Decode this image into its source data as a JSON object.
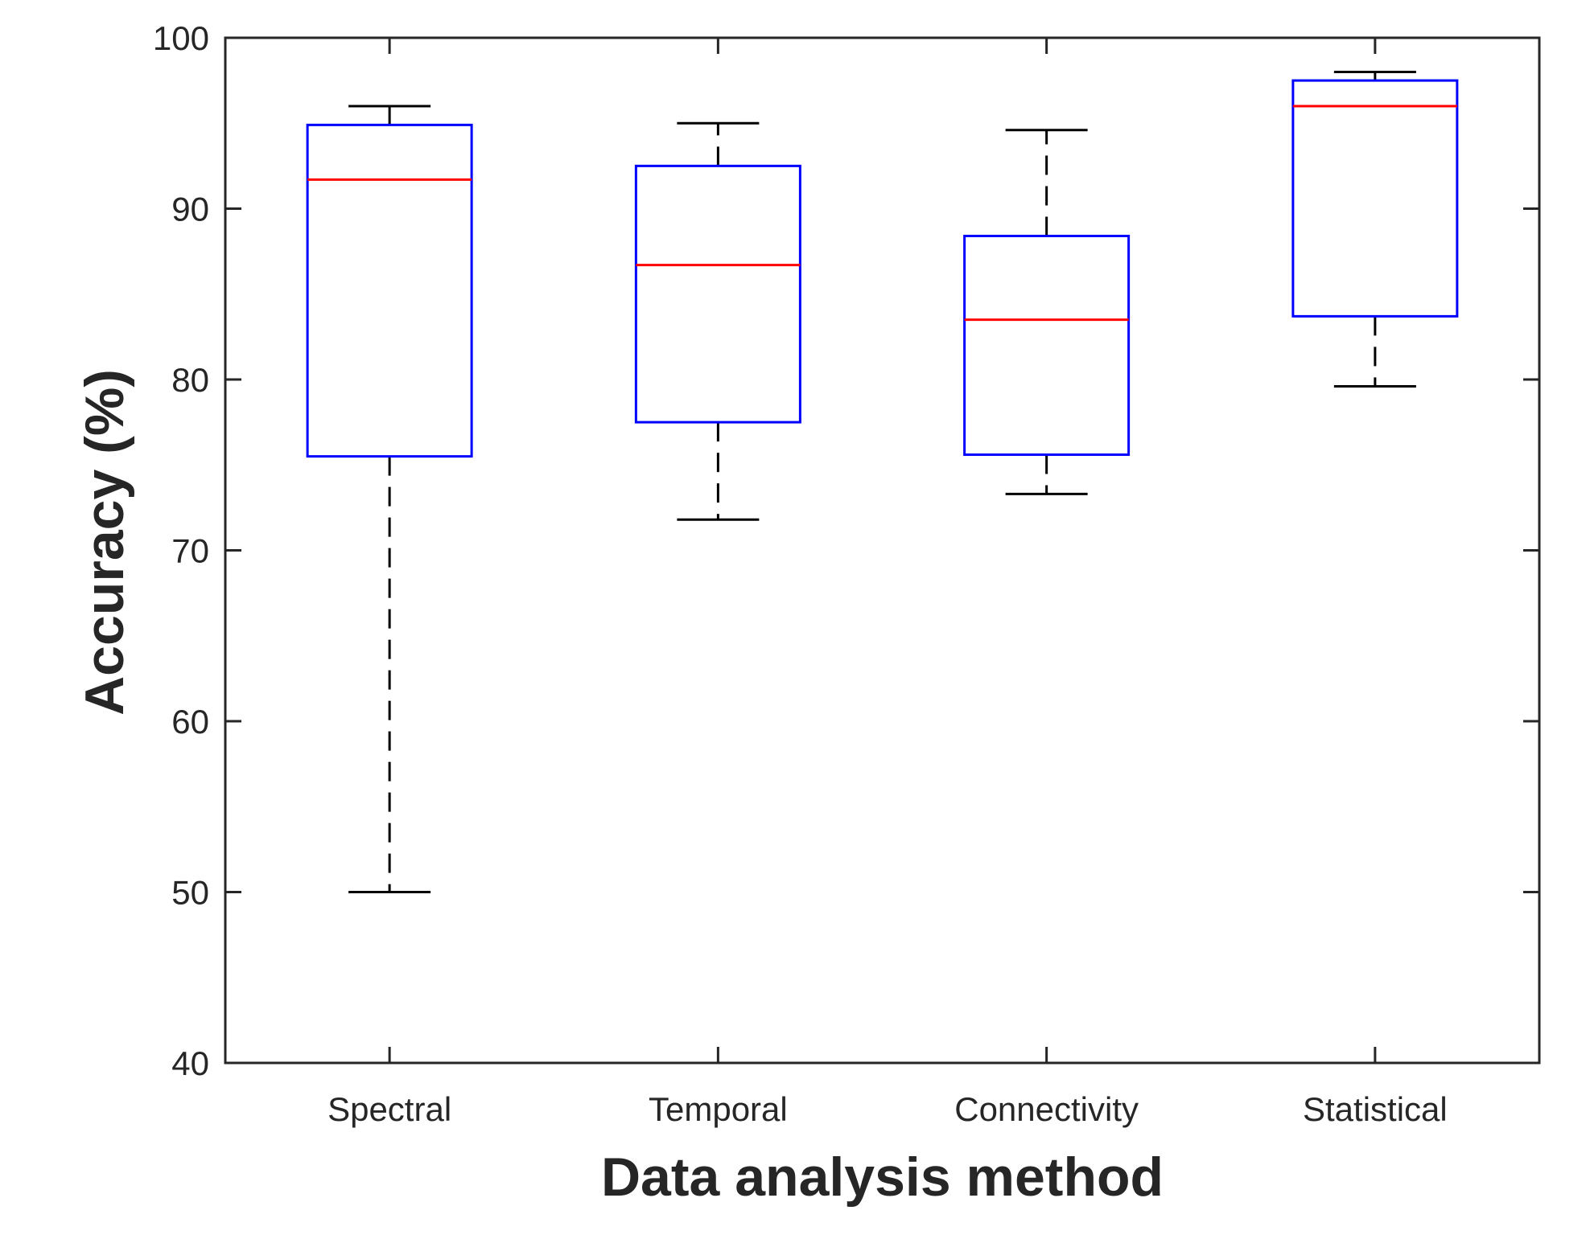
{
  "chart_data": {
    "type": "box",
    "xlabel": "Data analysis method",
    "ylabel": "Accuracy (%)",
    "ylim": [
      40,
      100
    ],
    "yticks": [
      40,
      50,
      60,
      70,
      80,
      90,
      100
    ],
    "categories": [
      "Spectral",
      "Temporal",
      "Connectivity",
      "Statistical"
    ],
    "boxes": [
      {
        "category": "Spectral",
        "whisker_low": 50.0,
        "q1": 75.5,
        "median": 91.7,
        "q3": 94.9,
        "whisker_high": 96.0
      },
      {
        "category": "Temporal",
        "whisker_low": 71.8,
        "q1": 77.5,
        "median": 86.7,
        "q3": 92.5,
        "whisker_high": 95.0
      },
      {
        "category": "Connectivity",
        "whisker_low": 73.3,
        "q1": 75.6,
        "median": 83.5,
        "q3": 88.4,
        "whisker_high": 94.6
      },
      {
        "category": "Statistical",
        "whisker_low": 79.6,
        "q1": 83.7,
        "median": 96.0,
        "q3": 97.5,
        "whisker_high": 98.0
      }
    ],
    "colors": {
      "box": "#0000ff",
      "median": "#ff0000",
      "whisker": "#000000",
      "axis": "#262626"
    },
    "grid": false
  }
}
